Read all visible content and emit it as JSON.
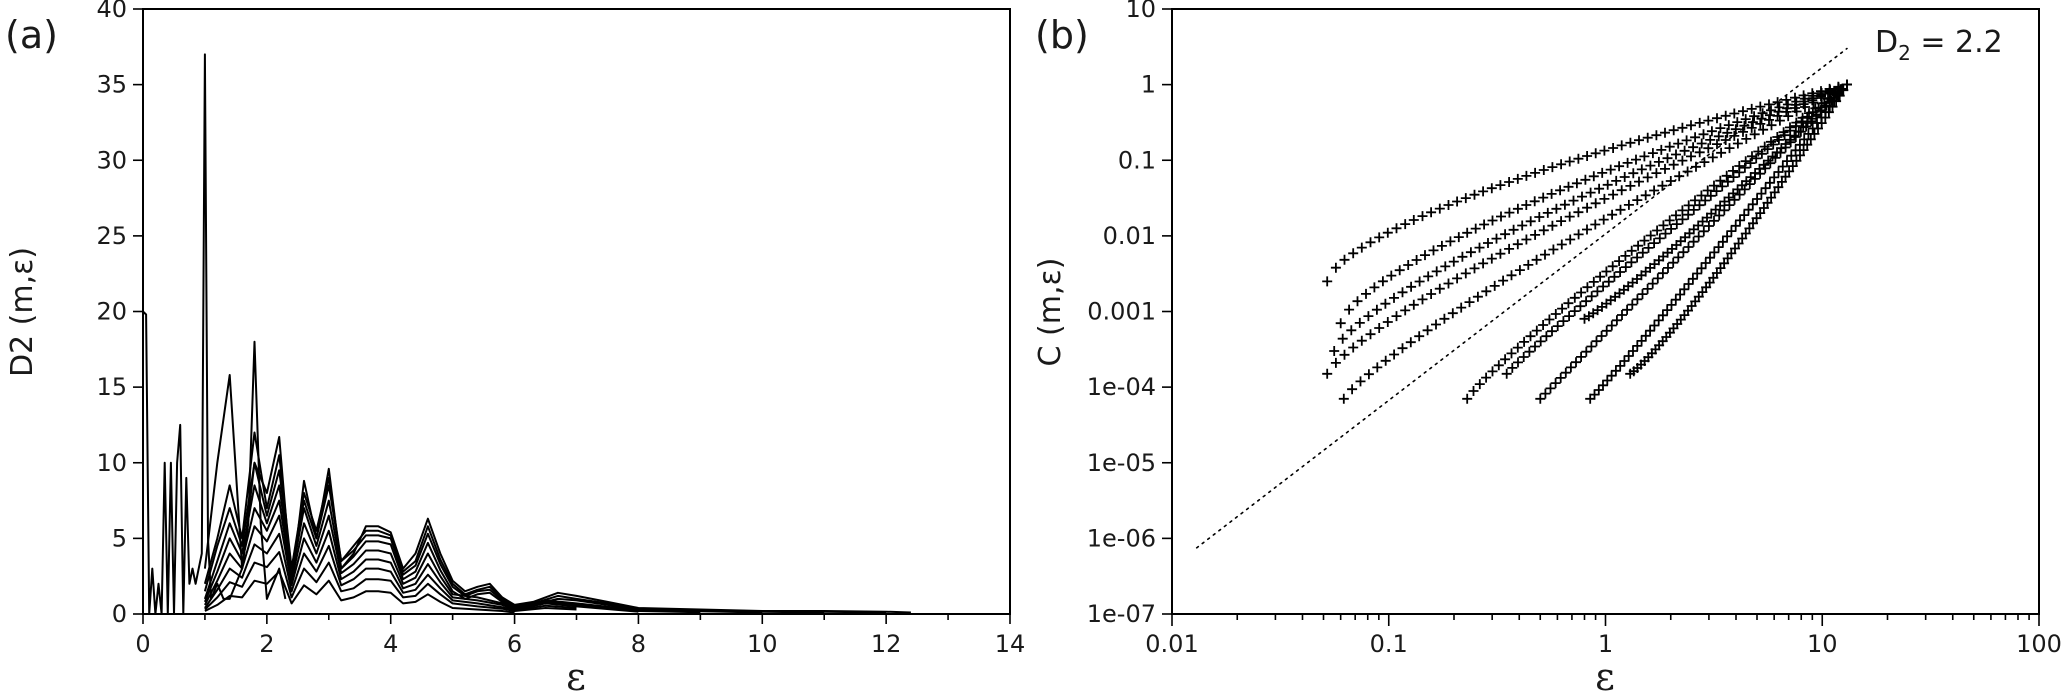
{
  "chart_data": [
    {
      "type": "line",
      "panel_label": "(a)",
      "xlabel": "ε",
      "ylabel": "D2 (m,ε)",
      "xlim": [
        0,
        14
      ],
      "ylim": [
        0,
        40
      ],
      "xticks": [
        "0",
        "2",
        "4",
        "6",
        "8",
        "10",
        "12",
        "14"
      ],
      "yticks": [
        "0",
        "5",
        "10",
        "15",
        "20",
        "25",
        "30",
        "35",
        "40"
      ],
      "series": [
        {
          "x": [
            0,
            0.05,
            0.1,
            0.15,
            0.2,
            0.25,
            0.3,
            0.35,
            0.4,
            0.45,
            0.5,
            0.55,
            0.6,
            0.65,
            0.7,
            0.75,
            0.8,
            0.85,
            0.9,
            0.95,
            1.0,
            1.05,
            1.1,
            1.2,
            1.3,
            1.4,
            1.5,
            1.6,
            1.7,
            1.8,
            1.9,
            2.0,
            2.1,
            2.2,
            2.3
          ],
          "y": [
            20,
            19.8,
            0,
            3,
            0,
            2,
            0,
            10,
            0,
            10,
            0,
            10,
            12.5,
            0,
            9,
            2,
            3,
            2,
            3,
            4,
            37,
            5,
            1,
            2,
            1,
            1,
            2,
            3,
            6,
            18,
            6,
            1,
            2,
            3,
            1
          ]
        },
        {
          "x": [
            1.0,
            1.2,
            1.4,
            1.6,
            1.8,
            2.0,
            2.2,
            2.4,
            2.6,
            2.8,
            3.0,
            3.2,
            3.4,
            3.6,
            3.8,
            4.0,
            4.2,
            4.4,
            4.6,
            4.8,
            5.0,
            5.2,
            5.4,
            5.6,
            5.8,
            6.0,
            6.3,
            6.7,
            7.0,
            7.5,
            8.0,
            9.0,
            10.0,
            11.0,
            12.0,
            12.4
          ],
          "y": [
            3,
            10,
            15.8,
            3,
            10,
            8,
            11.7,
            2,
            8.8,
            5,
            9.6,
            3,
            4,
            5.8,
            5.8,
            5.4,
            3,
            4,
            6.3,
            4,
            2.2,
            1.5,
            1.8,
            2,
            1.1,
            0.6,
            0.8,
            1.4,
            1.2,
            0.8,
            0.4,
            0.3,
            0.2,
            0.2,
            0.15,
            0.1
          ]
        },
        {
          "x": [
            1.0,
            1.2,
            1.4,
            1.6,
            1.8,
            2.0,
            2.2,
            2.4,
            2.6,
            2.8,
            3.0,
            3.2,
            3.4,
            3.6,
            3.8,
            4.0,
            4.2,
            4.4,
            4.6,
            4.8,
            5.0,
            5.2,
            5.4,
            5.6,
            5.8,
            6.0,
            6.3,
            6.7,
            7.0,
            7.5,
            8.0,
            9.0,
            10.0,
            11.0,
            12.0
          ],
          "y": [
            2,
            5,
            8.5,
            5,
            12,
            7,
            10.5,
            3,
            8,
            5.5,
            9,
            3.5,
            4.5,
            5.5,
            5.5,
            5.2,
            2.8,
            3.5,
            5.8,
            3.6,
            2,
            1.3,
            1.6,
            1.8,
            1.0,
            0.5,
            0.7,
            1.2,
            1.0,
            0.7,
            0.35,
            0.25,
            0.18,
            0.15,
            0.1
          ]
        },
        {
          "x": [
            1.0,
            1.2,
            1.4,
            1.6,
            1.8,
            2.0,
            2.2,
            2.4,
            2.6,
            2.8,
            3.0,
            3.2,
            3.4,
            3.6,
            3.8,
            4.0,
            4.2,
            4.4,
            4.6,
            4.8,
            5.0,
            5.2,
            5.4,
            5.6,
            5.8,
            6.0,
            6.3,
            6.7,
            7.0,
            7.5,
            8.0,
            9.0,
            10.0,
            11.0
          ],
          "y": [
            1.5,
            4.5,
            7,
            4.5,
            10,
            6.5,
            9.5,
            3,
            7.5,
            5,
            8.5,
            3.5,
            4.2,
            5.2,
            5.2,
            5,
            2.6,
            3.2,
            5.3,
            3.3,
            1.8,
            1.2,
            1.5,
            1.6,
            0.9,
            0.45,
            0.6,
            1.0,
            0.9,
            0.6,
            0.3,
            0.2,
            0.15,
            0.1
          ]
        },
        {
          "x": [
            1.0,
            1.2,
            1.4,
            1.6,
            1.8,
            2.0,
            2.2,
            2.4,
            2.6,
            2.8,
            3.0,
            3.2,
            3.4,
            3.6,
            3.8,
            4.0,
            4.2,
            4.4,
            4.6,
            4.8,
            5.0,
            5.2,
            5.4,
            5.6,
            5.8,
            6.0,
            6.5,
            7.0,
            8.0,
            9.0,
            10.0
          ],
          "y": [
            1,
            3.5,
            6,
            4,
            8.5,
            6,
            8.5,
            2.5,
            7,
            4.5,
            7.5,
            3,
            3.8,
            4.8,
            4.8,
            4.6,
            2.3,
            2.8,
            4.7,
            2.9,
            1.5,
            1.0,
            1.3,
            1.4,
            0.8,
            0.4,
            0.9,
            0.7,
            0.25,
            0.18,
            0.1
          ]
        },
        {
          "x": [
            1.0,
            1.2,
            1.4,
            1.6,
            1.8,
            2.0,
            2.2,
            2.4,
            2.6,
            2.8,
            3.0,
            3.2,
            3.4,
            3.6,
            3.8,
            4.0,
            4.2,
            4.4,
            4.6,
            4.8,
            5.0,
            5.4,
            5.8,
            6.0,
            6.5,
            7.0,
            8.0,
            9.0
          ],
          "y": [
            0.8,
            2.8,
            5,
            3.5,
            7,
            5.5,
            7.5,
            2.2,
            6,
            4,
            6.5,
            2.7,
            3.3,
            4.2,
            4.2,
            4,
            2,
            2.4,
            4,
            2.5,
            1.3,
            1.1,
            0.7,
            0.35,
            0.8,
            0.6,
            0.2,
            0.12
          ]
        },
        {
          "x": [
            1.0,
            1.2,
            1.4,
            1.6,
            1.8,
            2.0,
            2.2,
            2.4,
            2.6,
            2.8,
            3.0,
            3.2,
            3.4,
            3.6,
            3.8,
            4.0,
            4.2,
            4.4,
            4.6,
            4.8,
            5.0,
            5.4,
            5.8,
            6.0,
            6.5,
            7.0,
            8.0
          ],
          "y": [
            0.6,
            2.2,
            4,
            3,
            5.8,
            4.8,
            6.5,
            1.9,
            5,
            3.4,
            5.5,
            2.3,
            2.8,
            3.6,
            3.6,
            3.4,
            1.7,
            2.0,
            3.3,
            2.1,
            1.1,
            0.9,
            0.6,
            0.3,
            0.7,
            0.5,
            0.15
          ]
        },
        {
          "x": [
            1.0,
            1.2,
            1.4,
            1.6,
            1.8,
            2.0,
            2.2,
            2.4,
            2.6,
            2.8,
            3.0,
            3.2,
            3.4,
            3.6,
            3.8,
            4.0,
            4.2,
            4.4,
            4.6,
            4.8,
            5.0,
            5.4,
            5.8,
            6.0,
            6.5,
            7.0
          ],
          "y": [
            0.4,
            1.6,
            3,
            2.4,
            4.6,
            4,
            5.3,
            1.5,
            4,
            2.8,
            4.5,
            1.9,
            2.3,
            3.0,
            3.0,
            2.8,
            1.4,
            1.6,
            2.6,
            1.7,
            0.9,
            0.7,
            0.45,
            0.25,
            0.55,
            0.4
          ]
        },
        {
          "x": [
            1.0,
            1.2,
            1.4,
            1.6,
            1.8,
            2.0,
            2.2,
            2.4,
            2.6,
            2.8,
            3.0,
            3.2,
            3.4,
            3.6,
            3.8,
            4.0,
            4.2,
            4.4,
            4.6,
            4.8,
            5.0,
            5.4,
            5.8,
            6.0,
            6.5,
            7.0
          ],
          "y": [
            0.3,
            1.1,
            2.1,
            1.8,
            3.4,
            3.1,
            4.1,
            1.1,
            3,
            2.1,
            3.4,
            1.5,
            1.7,
            2.3,
            2.3,
            2.2,
            1.1,
            1.2,
            2.0,
            1.3,
            0.7,
            0.5,
            0.35,
            0.2,
            0.4,
            0.3
          ]
        },
        {
          "x": [
            1.0,
            1.2,
            1.4,
            1.6,
            1.8,
            2.0,
            2.2,
            2.4,
            2.6,
            2.8,
            3.0,
            3.2,
            3.4,
            3.6,
            3.8,
            4.0,
            4.2,
            4.4,
            4.6,
            4.8,
            5.0,
            5.4,
            5.8,
            6.0
          ],
          "y": [
            0.2,
            0.6,
            1.2,
            1.1,
            2.2,
            2.0,
            2.8,
            0.7,
            1.9,
            1.3,
            2.2,
            0.9,
            1.1,
            1.5,
            1.5,
            1.4,
            0.7,
            0.8,
            1.3,
            0.8,
            0.4,
            0.3,
            0.2,
            0.1
          ]
        }
      ]
    },
    {
      "type": "scatter",
      "panel_label": "(b)",
      "xlabel": "ε",
      "ylabel": "C (m,ε)",
      "xscale": "log",
      "yscale": "log",
      "xlim": [
        0.01,
        100
      ],
      "ylim": [
        1e-07,
        10
      ],
      "xticks": [
        "0.01",
        "0.1",
        "1",
        "10",
        "100"
      ],
      "yticks": [
        "1e-07",
        "1e-06",
        "1e-05",
        "1e-04",
        "0.001",
        "0.01",
        "0.1",
        "1",
        "10"
      ],
      "annotation": "D",
      "annotation_sub": "2",
      "annotation_tail": " = 2.2",
      "reference_line": {
        "style": "dotted",
        "slope": 2.2,
        "x": [
          0.013,
          13
        ],
        "y": [
          7.5e-07,
          3.0
        ]
      },
      "series": [
        {
          "x0": 0.052,
          "y0": 0.0025
        },
        {
          "x0": 0.06,
          "y0": 0.0007
        },
        {
          "x0": 0.056,
          "y0": 0.0003
        },
        {
          "x0": 0.052,
          "y0": 0.00015
        },
        {
          "x0": 0.062,
          "y0": 7e-05
        },
        {
          "x0": 0.23,
          "y0": 7e-05
        },
        {
          "x0": 0.35,
          "y0": 0.00015
        },
        {
          "x0": 0.5,
          "y0": 7e-05
        },
        {
          "x0": 0.85,
          "y0": 7e-05
        },
        {
          "x0": 0.8,
          "y0": 0.0008
        },
        {
          "x0": 1.3,
          "y0": 0.00015
        }
      ]
    }
  ]
}
